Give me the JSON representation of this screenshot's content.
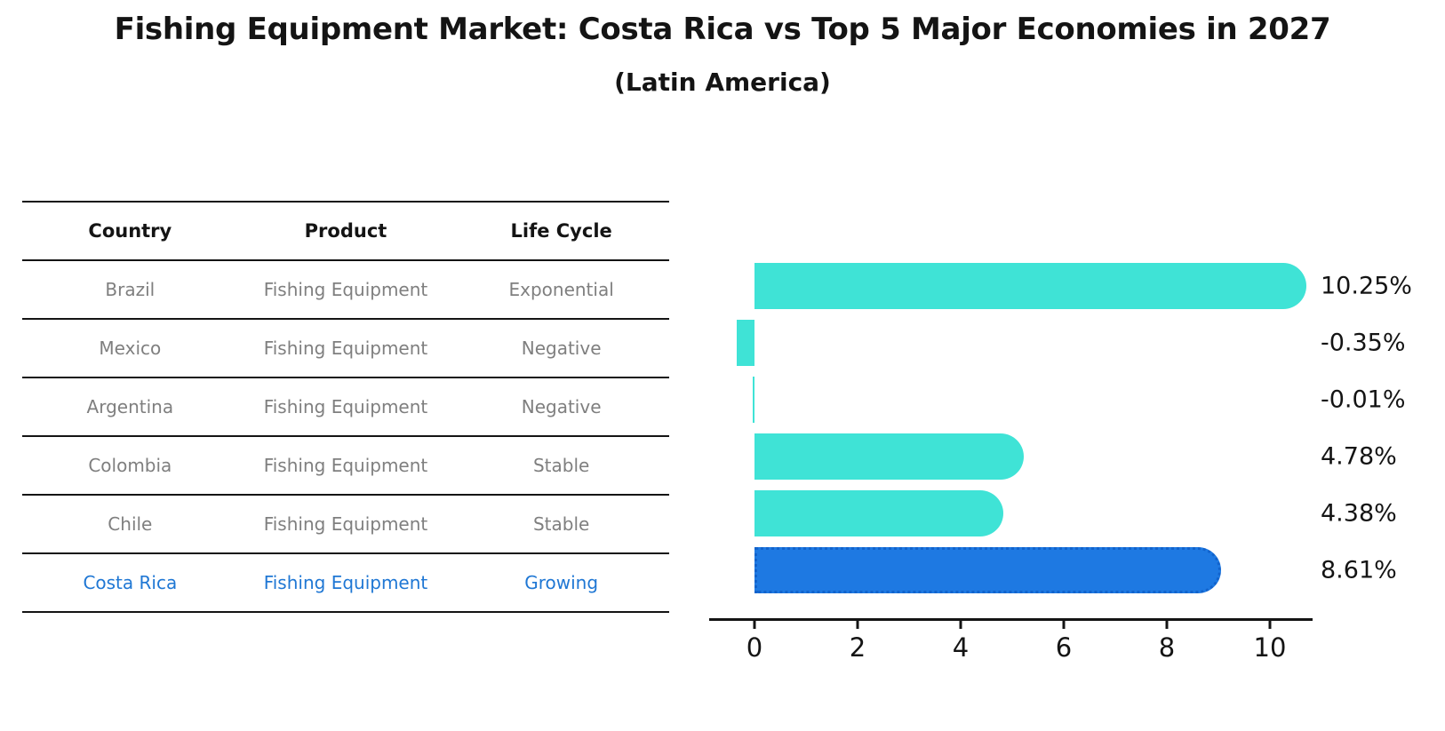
{
  "title": "Fishing Equipment Market: Costa Rica vs Top 5 Major Economies in 2027",
  "subtitle": "(Latin America)",
  "table": {
    "headers": {
      "country": "Country",
      "product": "Product",
      "life_cycle": "Life Cycle"
    },
    "rows": [
      {
        "country": "Brazil",
        "product": "Fishing Equipment",
        "life_cycle": "Exponential",
        "highlight": false
      },
      {
        "country": "Mexico",
        "product": "Fishing Equipment",
        "life_cycle": "Negative",
        "highlight": false
      },
      {
        "country": "Argentina",
        "product": "Fishing Equipment",
        "life_cycle": "Negative",
        "highlight": false
      },
      {
        "country": "Colombia",
        "product": "Fishing Equipment",
        "life_cycle": "Stable",
        "highlight": false
      },
      {
        "country": "Chile",
        "product": "Fishing Equipment",
        "life_cycle": "Stable",
        "highlight": false
      },
      {
        "country": "Costa Rica",
        "product": "Fishing Equipment",
        "life_cycle": "Growing",
        "highlight": true
      }
    ]
  },
  "chart_data": {
    "type": "bar",
    "orientation": "horizontal",
    "categories": [
      "Brazil",
      "Mexico",
      "Argentina",
      "Colombia",
      "Chile",
      "Costa Rica"
    ],
    "values": [
      10.25,
      -0.35,
      -0.01,
      4.78,
      4.38,
      8.61
    ],
    "value_labels": [
      "10.25%",
      "-0.35%",
      "-0.01%",
      "4.78%",
      "4.38%",
      "8.61%"
    ],
    "highlight_index": 5,
    "xticks": [
      "0",
      "2",
      "4",
      "6",
      "8",
      "10"
    ],
    "xtick_values": [
      0,
      2,
      4,
      6,
      8,
      10
    ],
    "xlim": [
      -0.9,
      10.8
    ],
    "grid": false,
    "legend": null,
    "xlabel": "",
    "ylabel": "",
    "bar_color": "#3FE3D6",
    "highlight_bar_color": "#1E79E2",
    "highlight_edge_color": "#1263CC",
    "highlight_text_color": "#1F77D4"
  },
  "colors": {
    "text": "#141414",
    "muted_text": "#7F7F7F"
  }
}
